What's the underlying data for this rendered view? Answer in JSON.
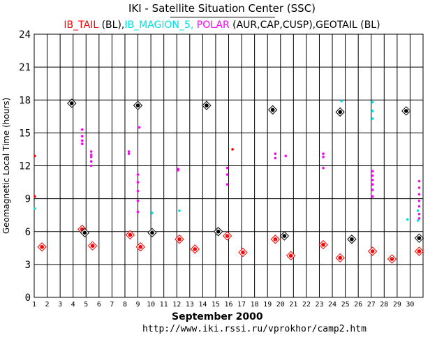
{
  "page": {
    "title": "IKI - Satellite Situation Center (SSC)",
    "subtitle_parts": [
      {
        "text": "IB_TAIL",
        "color": "#ff0000"
      },
      {
        "text": " (BL),",
        "color": "#000000"
      },
      {
        "text": "IB_MAGION_5,",
        "color": "#00e0e0"
      },
      {
        "text": " POLAR",
        "color": "#ff00ff"
      },
      {
        "text": " (AUR,CAP,CUSP),GEOTAIL (BL)",
        "color": "#000000"
      }
    ],
    "month_label": "September   2000",
    "url": "http://www.iki.rssi.ru/vprokhor/camp2.htm"
  },
  "chart_data": {
    "type": "scatter",
    "ylabel": "Geomagnetic Local Time (hours)",
    "xlim": [
      1,
      31
    ],
    "ylim": [
      0,
      24
    ],
    "x_ticks": [
      1,
      2,
      3,
      4,
      5,
      6,
      7,
      8,
      9,
      10,
      11,
      12,
      13,
      14,
      15,
      16,
      17,
      18,
      19,
      20,
      21,
      22,
      23,
      24,
      25,
      26,
      27,
      28,
      29,
      30
    ],
    "y_ticks": [
      0,
      3,
      6,
      9,
      12,
      15,
      18,
      21,
      24
    ],
    "grid": true,
    "series": [
      {
        "name": "IB_TAIL",
        "color": "#ff0000",
        "marker": "diamond",
        "points": [
          [
            1.6,
            4.6
          ],
          [
            4.7,
            6.2
          ],
          [
            5.5,
            4.7
          ],
          [
            8.4,
            5.7
          ],
          [
            9.2,
            4.6
          ],
          [
            12.2,
            5.3
          ],
          [
            13.4,
            4.4
          ],
          [
            15.9,
            5.6
          ],
          [
            17.1,
            4.1
          ],
          [
            19.6,
            5.3
          ],
          [
            20.8,
            3.8
          ],
          [
            23.3,
            4.8
          ],
          [
            24.6,
            3.6
          ],
          [
            27.1,
            4.2
          ],
          [
            28.6,
            3.5
          ],
          [
            30.7,
            4.2
          ]
        ]
      },
      {
        "name": "IB_TAIL",
        "color": "#ff0000",
        "marker": "dot",
        "points": [
          [
            1.05,
            12.9
          ],
          [
            1.05,
            9.2
          ]
        ]
      },
      {
        "name": "IB_MAGION_5",
        "color": "#00e0e0",
        "marker": "dot",
        "points": [
          [
            1.05,
            8.1
          ],
          [
            10.1,
            7.7
          ],
          [
            12.2,
            7.9
          ],
          [
            24.7,
            17.9
          ],
          [
            27.1,
            17.8
          ],
          [
            27.1,
            17.0
          ],
          [
            27.1,
            16.3
          ],
          [
            29.8,
            7.1
          ],
          [
            30.6,
            7.9
          ],
          [
            30.6,
            7.0
          ]
        ]
      },
      {
        "name": "POLAR",
        "color": "#ff00ff",
        "marker": "dot",
        "points": [
          [
            4.7,
            15.3
          ],
          [
            4.7,
            14.7
          ],
          [
            4.7,
            14.3
          ],
          [
            4.7,
            14.0
          ],
          [
            5.4,
            13.3
          ],
          [
            5.4,
            13.0
          ],
          [
            5.4,
            12.8
          ],
          [
            5.4,
            12.4
          ],
          [
            5.4,
            12.0
          ],
          [
            8.3,
            13.3
          ],
          [
            8.3,
            13.1
          ],
          [
            9.0,
            11.2
          ],
          [
            9.0,
            10.5
          ],
          [
            9.0,
            9.7
          ],
          [
            9.0,
            8.8
          ],
          [
            9.0,
            7.8
          ],
          [
            9.1,
            15.5
          ],
          [
            12.1,
            11.7
          ],
          [
            12.1,
            11.6
          ],
          [
            15.9,
            11.8
          ],
          [
            15.9,
            11.2
          ],
          [
            15.9,
            10.3
          ],
          [
            19.6,
            13.1
          ],
          [
            19.6,
            12.7
          ],
          [
            20.4,
            12.9
          ],
          [
            23.3,
            13.1
          ],
          [
            23.3,
            12.8
          ],
          [
            23.3,
            11.8
          ],
          [
            27.1,
            11.5
          ],
          [
            27.1,
            11.1
          ],
          [
            27.1,
            10.7
          ],
          [
            27.1,
            10.3
          ],
          [
            27.1,
            9.8
          ],
          [
            27.1,
            9.2
          ],
          [
            30.7,
            10.6
          ],
          [
            30.7,
            10.0
          ],
          [
            30.7,
            9.4
          ],
          [
            30.7,
            8.8
          ],
          [
            30.7,
            8.3
          ],
          [
            30.7,
            7.6
          ],
          [
            30.7,
            7.2
          ]
        ]
      },
      {
        "name": "POLAR",
        "color": "#ff0000",
        "marker": "dot",
        "points": [
          [
            16.3,
            13.5
          ]
        ]
      },
      {
        "name": "GEOTAIL",
        "color": "#000000",
        "marker": "diamond",
        "points": [
          [
            3.9,
            17.7
          ],
          [
            4.9,
            5.9
          ],
          [
            9.0,
            17.5
          ],
          [
            10.1,
            5.9
          ],
          [
            14.3,
            17.5
          ],
          [
            15.2,
            6.0
          ],
          [
            19.4,
            17.1
          ],
          [
            20.3,
            5.6
          ],
          [
            24.6,
            16.9
          ],
          [
            25.5,
            5.3
          ],
          [
            29.7,
            17.0
          ],
          [
            30.7,
            5.4
          ]
        ]
      }
    ]
  }
}
